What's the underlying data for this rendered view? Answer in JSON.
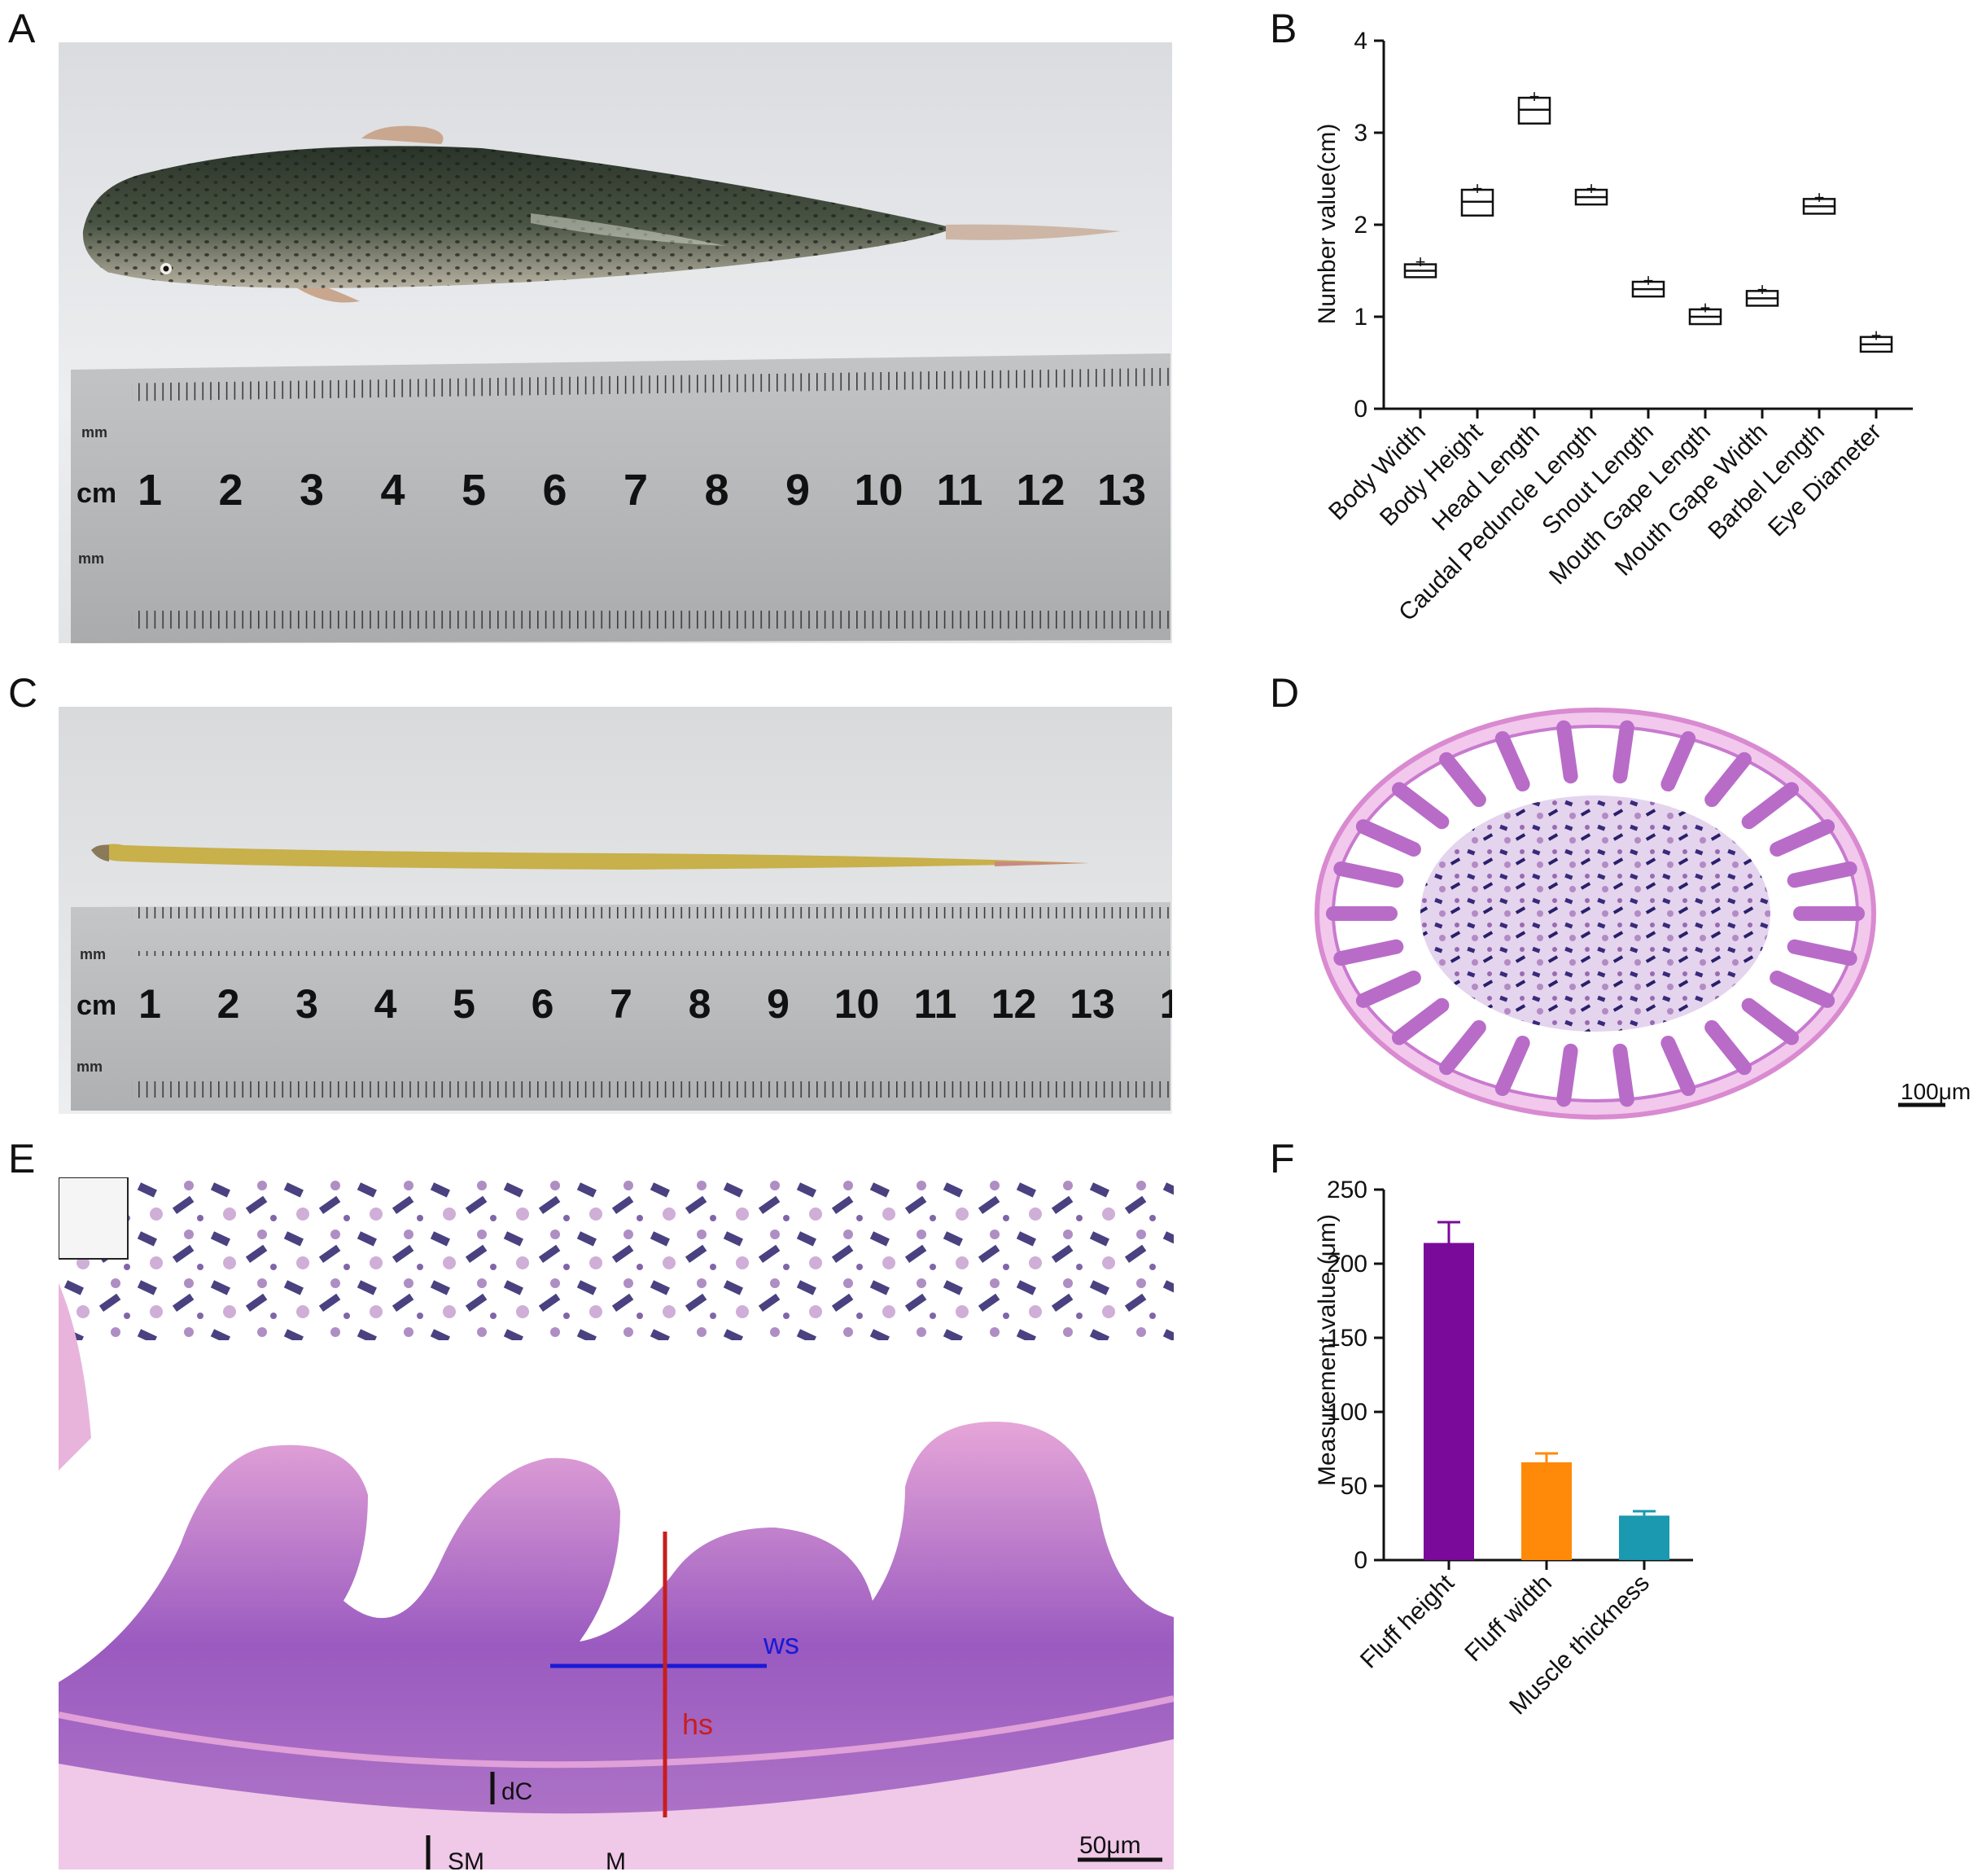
{
  "panels": {
    "a": {
      "letter": "A"
    },
    "b": {
      "letter": "B"
    },
    "c": {
      "letter": "C"
    },
    "d": {
      "letter": "D",
      "scale_bar": "100μm"
    },
    "e": {
      "letter": "E",
      "scale_bar": "50μm",
      "labels": {
        "ws": "ws",
        "hs": "hs",
        "dc": "dC",
        "sm": "SM",
        "m": "M"
      }
    },
    "f": {
      "letter": "F"
    }
  },
  "ruler": {
    "unit_cm": "cm",
    "unit_mm_top": "mm",
    "unit_mm_bottom": "mm",
    "numbers_a": [
      "1",
      "2",
      "3",
      "4",
      "5",
      "6",
      "7",
      "8",
      "9",
      "10",
      "11",
      "12",
      "13"
    ],
    "numbers_c": [
      "1",
      "2",
      "3",
      "4",
      "5",
      "6",
      "7",
      "8",
      "9",
      "10",
      "11",
      "12",
      "13",
      "1"
    ]
  },
  "colors": {
    "fish_body": "#3f4a3c",
    "intestine": "#c8b04a",
    "he_pink": "#e6a6d8",
    "he_purple": "#8a4fb0",
    "line_ws": "#1a1ad6",
    "line_hs": "#c81e1e",
    "bar_fluff_height": "#7a0a99",
    "bar_fluff_width": "#ff8a0a",
    "bar_muscle": "#1a99b0"
  },
  "chart_data": [
    {
      "type": "box",
      "panel": "B",
      "ylabel": "Number value(cm)",
      "ylim": [
        0,
        4
      ],
      "yticks": [
        "0",
        "1",
        "2",
        "3",
        "4"
      ],
      "categories": [
        "Body Width",
        "Body Height",
        "Head Length",
        "Caudal Peduncle Length",
        "Snout Length",
        "Mouth Gape Length",
        "Mouth Gape Width",
        "Barbel Length",
        "Eye Diameter"
      ],
      "boxes": [
        {
          "q1": 1.43,
          "median": 1.5,
          "q3": 1.57,
          "mean": 1.6
        },
        {
          "q1": 2.1,
          "median": 2.25,
          "q3": 2.38,
          "mean": 2.4
        },
        {
          "q1": 3.1,
          "median": 3.25,
          "q3": 3.38,
          "mean": 3.4
        },
        {
          "q1": 2.22,
          "median": 2.3,
          "q3": 2.38,
          "mean": 2.4
        },
        {
          "q1": 1.22,
          "median": 1.3,
          "q3": 1.38,
          "mean": 1.4
        },
        {
          "q1": 0.92,
          "median": 1.0,
          "q3": 1.08,
          "mean": 1.1
        },
        {
          "q1": 1.12,
          "median": 1.2,
          "q3": 1.28,
          "mean": 1.3
        },
        {
          "q1": 2.12,
          "median": 2.2,
          "q3": 2.28,
          "mean": 2.3
        },
        {
          "q1": 0.62,
          "median": 0.7,
          "q3": 0.78,
          "mean": 0.8
        }
      ]
    },
    {
      "type": "bar",
      "panel": "F",
      "ylabel": "Measurement value (μm)",
      "ylim": [
        0,
        250
      ],
      "yticks": [
        "0",
        "50",
        "100",
        "150",
        "200",
        "250"
      ],
      "categories": [
        "Fluff height",
        "Fluff width",
        "Muscle thickness"
      ],
      "values": [
        214,
        66,
        30
      ],
      "errors": [
        14,
        6,
        3
      ],
      "colors": [
        "#7a0a99",
        "#ff8a0a",
        "#1a99b0"
      ]
    }
  ]
}
